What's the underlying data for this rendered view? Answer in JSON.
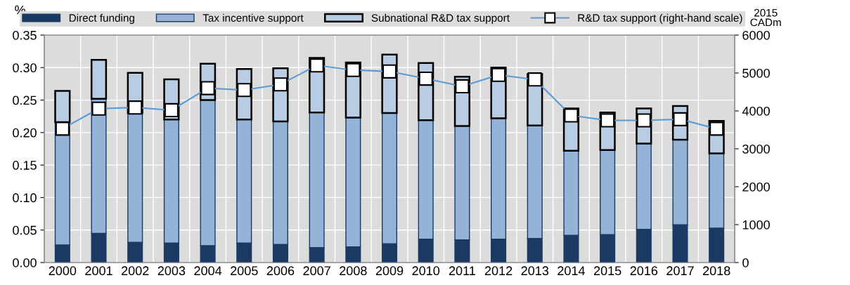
{
  "chart_data": {
    "type": "bar",
    "stacked": true,
    "ylabel": "%",
    "y2label": "2015\nCADm",
    "categories": [
      "2000",
      "2001",
      "2002",
      "2003",
      "2004",
      "2005",
      "2006",
      "2007",
      "2008",
      "2009",
      "2010",
      "2011",
      "2012",
      "2013",
      "2014",
      "2015",
      "2016",
      "2017",
      "2018"
    ],
    "series": [
      {
        "name": "Direct funding",
        "color": "#1a3a63",
        "values": [
          0.027,
          0.045,
          0.031,
          0.03,
          0.026,
          0.03,
          0.028,
          0.023,
          0.024,
          0.029,
          0.036,
          0.035,
          0.036,
          0.037,
          0.042,
          0.043,
          0.051,
          0.058,
          0.053
        ]
      },
      {
        "name": "Tax incentive support",
        "color": "#94b3d7",
        "values": [
          0.189,
          0.207,
          0.199,
          0.19,
          0.224,
          0.19,
          0.189,
          0.208,
          0.199,
          0.201,
          0.183,
          0.175,
          0.186,
          0.174,
          0.13,
          0.13,
          0.132,
          0.131,
          0.115
        ]
      },
      {
        "name": "Subnational R&D tax support",
        "color": "#b8cce4",
        "values": [
          0.048,
          0.06,
          0.062,
          0.062,
          0.056,
          0.078,
          0.082,
          0.084,
          0.085,
          0.09,
          0.088,
          0.076,
          0.078,
          0.079,
          0.065,
          0.058,
          0.054,
          0.052,
          0.05
        ]
      },
      {
        "name": "R&D tax support (right-hand scale)",
        "type": "line",
        "axis": "y2",
        "color": "#5b9bd5",
        "marker": "square",
        "values": [
          3530,
          4060,
          4090,
          4020,
          4600,
          4550,
          4700,
          5200,
          5080,
          5040,
          4850,
          4650,
          4950,
          4830,
          3880,
          3750,
          3750,
          3780,
          3530
        ]
      }
    ],
    "ylim": [
      0,
      0.35
    ],
    "yticks": [
      {
        "value": 0,
        "label": "0.00"
      },
      {
        "value": 0.05,
        "label": "0.05"
      },
      {
        "value": 0.1,
        "label": "0.10"
      },
      {
        "value": 0.15,
        "label": "0.15"
      },
      {
        "value": 0.2,
        "label": "0.20"
      },
      {
        "value": 0.25,
        "label": "0.25"
      },
      {
        "value": 0.3,
        "label": "0.30"
      },
      {
        "value": 0.35,
        "label": "0.35"
      }
    ],
    "y2lim": [
      0,
      6000
    ],
    "y2ticks": [
      0,
      1000,
      2000,
      3000,
      4000,
      5000,
      6000
    ],
    "grid": true,
    "legend": "top"
  }
}
